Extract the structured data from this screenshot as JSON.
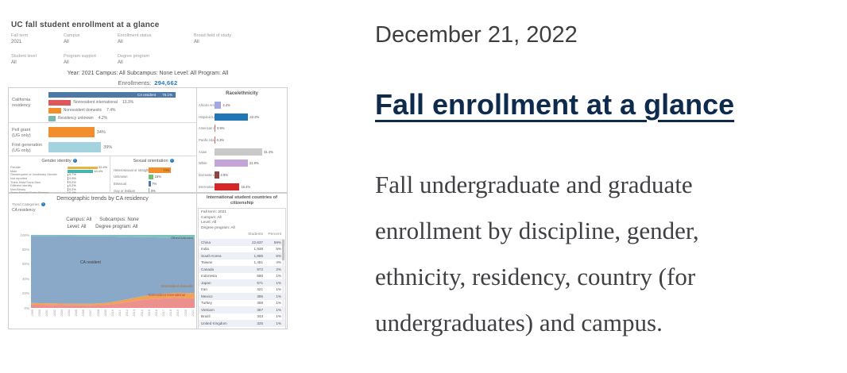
{
  "post": {
    "date": "December 21, 2022",
    "title": "Fall enrollment at a glance",
    "description": "Fall undergraduate and graduate enrollment by discipline, gender, ethnicity, residency, country (for undergraduates) and campus."
  },
  "dashboard": {
    "title": "UC fall student enrollment at a glance",
    "filters": [
      {
        "label": "Fall term",
        "value": "2021"
      },
      {
        "label": "Campus",
        "value": "All"
      },
      {
        "label": "Enrollment status",
        "value": "All"
      },
      {
        "label": "Broad field of study",
        "value": "All"
      },
      {
        "label": "Student level",
        "value": "All"
      },
      {
        "label": "Program support",
        "value": "All"
      },
      {
        "label": "Degree program",
        "value": "All"
      }
    ],
    "summary": "Year: 2021  Campus: All   Subcampus: None   Level: All   Program: All",
    "enrollments": {
      "label": "Enrollments:",
      "value": "294,662"
    },
    "residency_label": [
      "California",
      "residency"
    ],
    "pell_label": [
      "Pell grant",
      "(UG only)"
    ],
    "first_gen_label": [
      "First generation",
      "(UG only)"
    ],
    "gender_title": "Gender identity",
    "orientation_title": "Sexual orientation",
    "race_title": "Race/ethnicity",
    "help_icon": "?",
    "trends": {
      "title": "Demographic trends by CA residency",
      "categories_label": "Trend Categories",
      "categories_value": "CA residency",
      "line1": "Campus: All      Subcampus: None",
      "line2": "Level: All       Degree program: All",
      "y_ticks": [
        "100%",
        "80%",
        "60%",
        "40%",
        "20%",
        "0%"
      ],
      "annotations": [
        "Other/Unknown",
        "CA resident",
        "Nonresident domestic",
        "Nonresident international"
      ]
    },
    "countries": {
      "title": "International student countries of citizenship",
      "filters": [
        "Fall term: 2021",
        "Campus: All",
        "Level: All",
        "Degree program: All"
      ],
      "columns": [
        "Students",
        "Percent"
      ]
    }
  },
  "chart_data": [
    {
      "type": "bar",
      "title": "California residency",
      "categories": [
        "CA resident",
        "Nonresident international",
        "Nonresident domestic",
        "Residency unknown"
      ],
      "values": [
        75.1,
        13.3,
        7.4,
        4.2
      ],
      "unit": "percent",
      "colors": [
        "#4e79a7",
        "#e15759",
        "#f28e2b",
        "#76b7b2"
      ]
    },
    {
      "type": "bar",
      "title": "Undergraduate background (UG only)",
      "categories": [
        "Pell grant (UG only)",
        "First generation (UG only)"
      ],
      "values": [
        34,
        39
      ],
      "unit": "percent",
      "colors": [
        "#f28e2b",
        "#a3d3de"
      ]
    },
    {
      "type": "bar",
      "title": "Gender identity",
      "categories": [
        "Female",
        "Male",
        "Genderqueer or Nonbinary Gender",
        "Not reported",
        "Trans Male/Trans Man",
        "Different identity",
        "Non-Binary",
        "Trans Female/Trans Woman"
      ],
      "values": [
        52.4,
        44.4,
        0.7,
        0.9,
        0.2,
        0.2,
        0.2,
        0.1
      ],
      "unit": "percent",
      "colors": [
        "#e3b73c",
        "#45b5b0",
        "#9a9a9a",
        "#9a9a9a",
        "#9a9a9a",
        "#9a9a9a",
        "#9a9a9a",
        "#9a9a9a"
      ]
    },
    {
      "type": "bar",
      "title": "Sexual orientation",
      "categories": [
        "Heterosexual or straight",
        "Unknown",
        "Bisexual",
        "Gay or lesbian"
      ],
      "values": [
        74,
        16,
        7,
        3
      ],
      "unit": "percent",
      "colors": [
        "#f28e2b",
        "#6fbf73",
        "#4e79a7",
        "#76b7b2"
      ]
    },
    {
      "type": "bar",
      "title": "Race/ethnicity",
      "categories": [
        "African American",
        "Hispanic/Latino(a)",
        "American Indian",
        "Pacific Islander",
        "Asian",
        "White",
        "Domestic unknown",
        "International"
      ],
      "values": [
        4.4,
        22.2,
        0.5,
        0.3,
        31.4,
        21.9,
        2.9,
        16.4
      ],
      "unit": "percent",
      "colors": [
        "#a2a9e2",
        "#2176b5",
        "#cf6a66",
        "#cf6a66",
        "#c9c9c9",
        "#c4a5d7",
        "#8b4640",
        "#d62728"
      ]
    },
    {
      "type": "area",
      "title": "Demographic trends by CA residency",
      "x": [
        1999,
        2000,
        2001,
        2002,
        2003,
        2004,
        2005,
        2006,
        2007,
        2008,
        2009,
        2010,
        2011,
        2012,
        2013,
        2014,
        2015,
        2016,
        2017,
        2018,
        2019,
        2020,
        2021
      ],
      "ylim": [
        0,
        100
      ],
      "stack_order": "bottom-to-top",
      "series": [
        {
          "name": "Nonresident international",
          "color": "#ec8f8f",
          "values": [
            4.5,
            4.3,
            4.2,
            4.0,
            3.8,
            3.6,
            3.5,
            3.4,
            3.5,
            3.8,
            4.2,
            5.0,
            6.5,
            8.0,
            9.5,
            11.0,
            12.0,
            12.8,
            13.2,
            13.5,
            13.8,
            13.0,
            13.3
          ]
        },
        {
          "name": "Nonresident domestic",
          "color": "#f2a254",
          "values": [
            2.2,
            2.2,
            2.2,
            2.2,
            2.2,
            2.2,
            2.2,
            2.2,
            2.3,
            2.4,
            2.6,
            3.0,
            3.5,
            4.0,
            4.5,
            5.0,
            5.5,
            6.0,
            6.5,
            6.8,
            7.0,
            7.2,
            7.4
          ]
        },
        {
          "name": "CA resident",
          "color": "#8aa9c9",
          "values": [
            91.8,
            92.0,
            92.1,
            92.3,
            92.4,
            92.6,
            92.6,
            92.7,
            92.4,
            92.0,
            91.2,
            89.8,
            87.6,
            85.4,
            83.2,
            81.0,
            79.3,
            77.8,
            76.7,
            75.9,
            75.2,
            75.7,
            75.1
          ]
        },
        {
          "name": "Other/Unknown",
          "color": "#7cc3bd",
          "values": [
            1.5,
            1.5,
            1.5,
            1.5,
            1.6,
            1.6,
            1.7,
            1.7,
            1.8,
            1.8,
            2.0,
            2.2,
            2.4,
            2.6,
            2.8,
            3.0,
            3.2,
            3.4,
            3.6,
            3.8,
            4.0,
            4.1,
            4.2
          ]
        }
      ]
    },
    {
      "type": "table",
      "title": "International student countries of citizenship",
      "columns": [
        "Country",
        "Students",
        "Percent"
      ],
      "rows": [
        [
          "China",
          "22,637",
          "59%"
        ],
        [
          "India",
          "1,938",
          "5%"
        ],
        [
          "South Korea",
          "1,885",
          "5%"
        ],
        [
          "Taiwan",
          "1,451",
          "4%"
        ],
        [
          "Canada",
          "972",
          "2%"
        ],
        [
          "Indonesia",
          "590",
          "1%"
        ],
        [
          "Japan",
          "571",
          "1%"
        ],
        [
          "Iran",
          "421",
          "1%"
        ],
        [
          "Mexico",
          "395",
          "1%"
        ],
        [
          "Turkey",
          "368",
          "1%"
        ],
        [
          "Vietnam",
          "367",
          "1%"
        ],
        [
          "Brazil",
          "343",
          "1%"
        ],
        [
          "United Kingdom",
          "325",
          "1%"
        ]
      ]
    }
  ]
}
